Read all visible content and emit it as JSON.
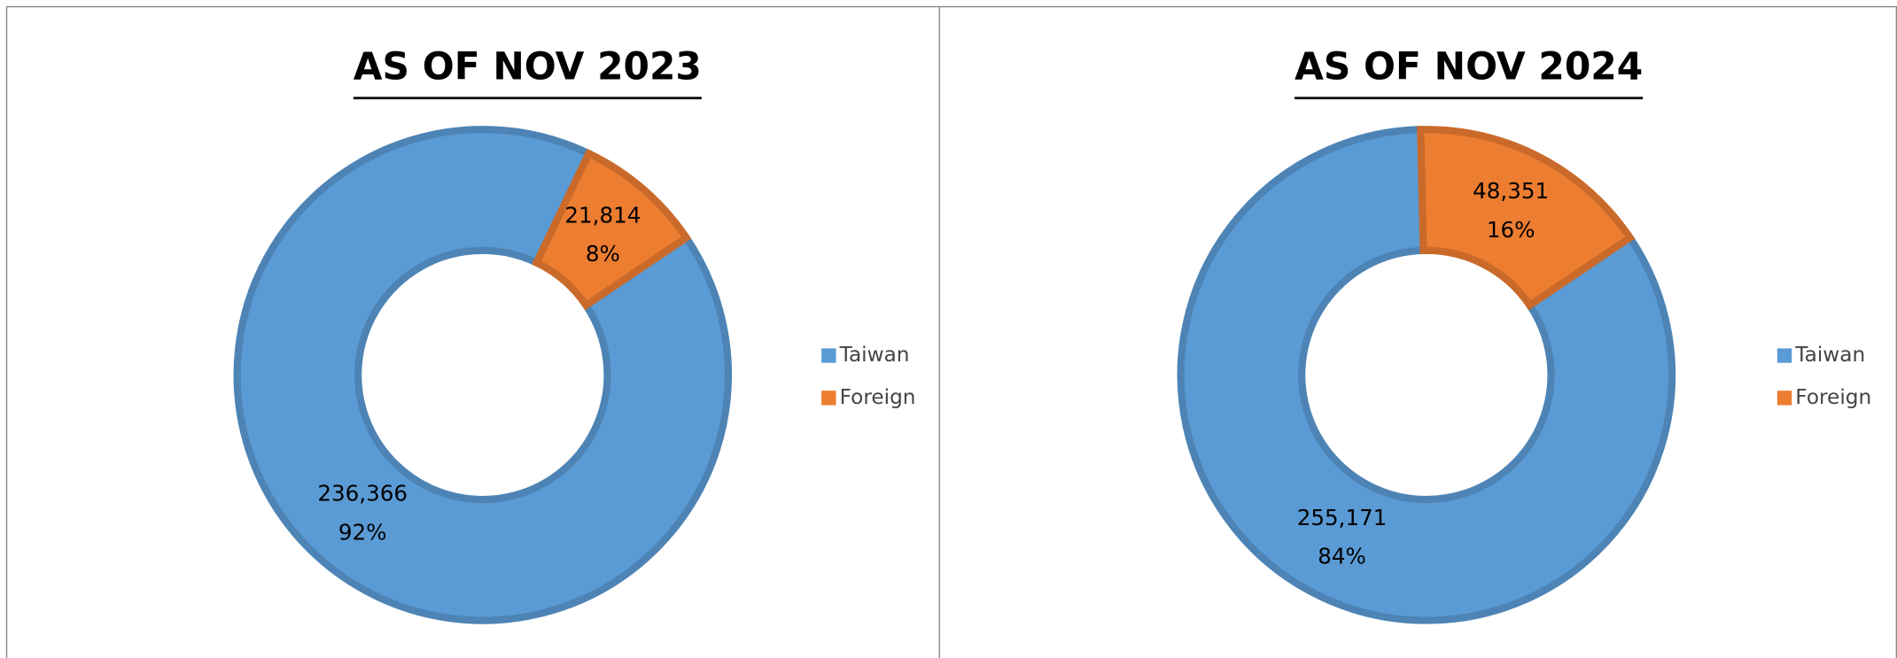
{
  "chart_data": [
    {
      "type": "pie",
      "title": "AS OF NOV 2023",
      "categories": [
        "Taiwan",
        "Foreign"
      ],
      "values": [
        236366,
        21814
      ],
      "value_labels": [
        "236,366",
        "21,814"
      ],
      "percent_labels": [
        "92%",
        "8%"
      ],
      "colors": [
        "#5b9bd5",
        "#ed7d31"
      ],
      "donut": true,
      "legend": "right"
    },
    {
      "type": "pie",
      "title": "AS OF NOV 2024",
      "categories": [
        "Taiwan",
        "Foreign"
      ],
      "values": [
        255171,
        48351
      ],
      "value_labels": [
        "255,171",
        "48,351"
      ],
      "percent_labels": [
        "84%",
        "16%"
      ],
      "colors": [
        "#5b9bd5",
        "#ed7d31"
      ],
      "donut": true,
      "legend": "right"
    }
  ]
}
